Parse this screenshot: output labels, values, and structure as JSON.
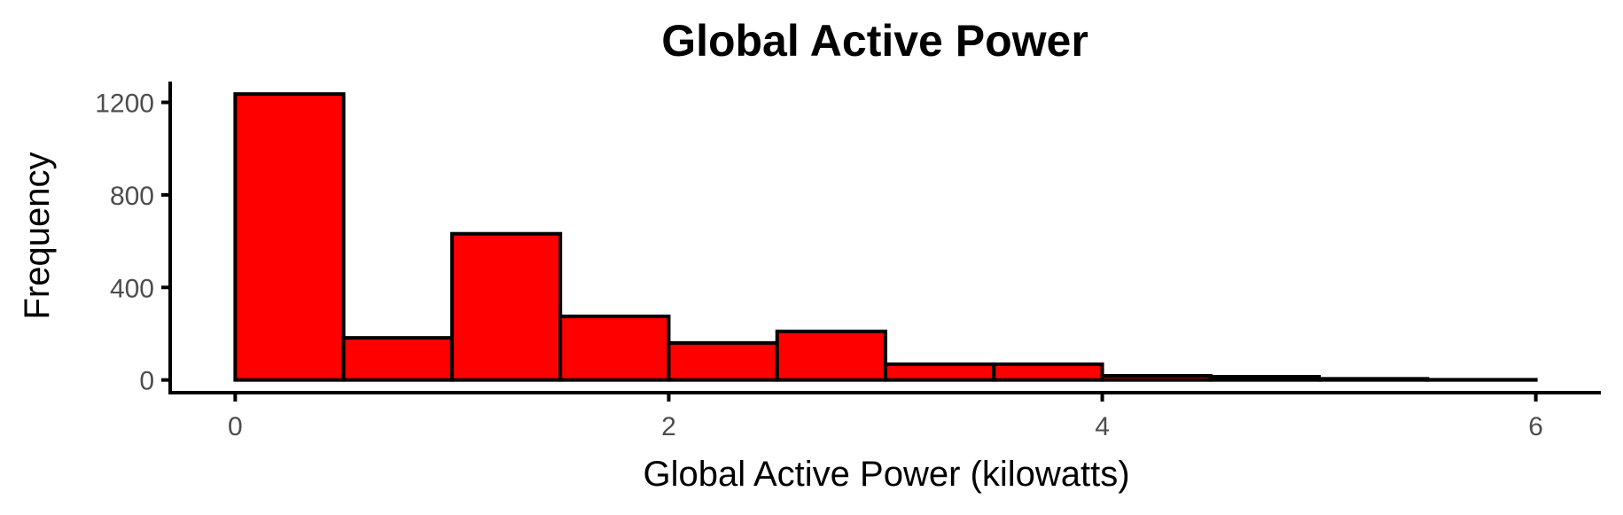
{
  "chart_data": {
    "type": "bar",
    "title": "Global Active Power",
    "xlabel": "Global Active Power (kilowatts)",
    "ylabel": "Frequency",
    "bin_edges": [
      0,
      0.5,
      1,
      1.5,
      2,
      2.5,
      3,
      3.5,
      4,
      4.5,
      5,
      5.5,
      6
    ],
    "values": [
      1236,
      182,
      632,
      275,
      160,
      210,
      68,
      68,
      18,
      14,
      5,
      1
    ],
    "xlim": [
      -0.3,
      6.3
    ],
    "ylim": [
      -55,
      1290
    ],
    "xticks": [
      0,
      2,
      4,
      6
    ],
    "xtick_labels": [
      "0",
      "2",
      "4",
      "6"
    ],
    "yticks": [
      0,
      400,
      800,
      1200
    ],
    "ytick_labels": [
      "0",
      "400",
      "800",
      "1200"
    ],
    "grid": false,
    "bar_color": "#ff0000",
    "edge_color": "#000000"
  }
}
